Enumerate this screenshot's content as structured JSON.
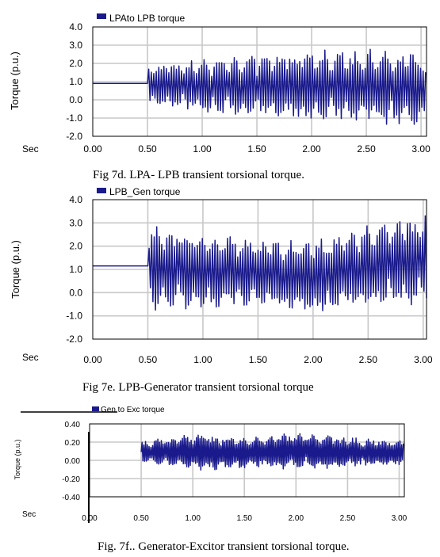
{
  "chart_data": [
    {
      "type": "line",
      "legend": "LPAto LPB torque",
      "ylabel": "Torque (p.u.)",
      "xlabel": "Sec",
      "caption": "Fig  7d.    LPA- LPB transient torsional torque.",
      "xlim": [
        0,
        3.05
      ],
      "ylim": [
        -2.0,
        4.0
      ],
      "x_ticks": [
        "0.00",
        "0.50",
        "1.00",
        "1.50",
        "2.00",
        "2.50",
        "3.00"
      ],
      "y_ticks": [
        "4.0",
        "3.0",
        "2.0",
        "1.0",
        "0.0",
        "-1.0",
        "-2.0"
      ],
      "series": [
        {
          "color": "#1a1a8c",
          "steady_value": 0.9,
          "disturbance_time": 0.5,
          "envelope": {
            "t": [
              0.5,
              1.0,
              1.5,
              2.0,
              2.5,
              3.0
            ],
            "upper": [
              2.0,
              2.2,
              2.4,
              2.7,
              2.8,
              2.4
            ],
            "lower": [
              -0.3,
              -0.7,
              -0.9,
              -1.0,
              -1.3,
              -1.5
            ]
          }
        }
      ]
    },
    {
      "type": "line",
      "legend": "LPB_Gen  torque",
      "ylabel": "Torque (p.u.)",
      "xlabel": "Sec",
      "caption": "Fig  7e.     LPB-Generator transient torsional torque",
      "xlim": [
        0,
        3.03
      ],
      "ylim": [
        -2.0,
        4.0
      ],
      "x_ticks": [
        "0.00",
        "0.50",
        "1.00",
        "1.50",
        "2.00",
        "2.50",
        "3.00"
      ],
      "y_ticks": [
        "4.0",
        "3.0",
        "2.0",
        "1.0",
        "0.0",
        "-1.0",
        "-2.0"
      ],
      "series": [
        {
          "color": "#1a1a8c",
          "steady_value": 1.15,
          "disturbance_time": 0.5,
          "envelope": {
            "t": [
              0.5,
              1.0,
              1.5,
              2.0,
              2.5,
              3.0
            ],
            "upper": [
              2.9,
              2.5,
              2.3,
              2.2,
              2.9,
              3.3
            ],
            "lower": [
              -0.8,
              -0.7,
              -0.6,
              -0.9,
              -0.6,
              -0.5
            ]
          }
        }
      ]
    },
    {
      "type": "line",
      "legend": "Gen to Exc torque",
      "ylabel": "Torque (p.u.)",
      "xlabel": "Sec",
      "caption": "Fig.   7f..  Generator-Excitor transient torsional torque.",
      "xlim": [
        0,
        3.05
      ],
      "ylim": [
        -0.4,
        0.4
      ],
      "x_ticks": [
        "0.00",
        "0.50",
        "1.00",
        "1.50",
        "2.00",
        "2.50",
        "3.00"
      ],
      "y_ticks": [
        "0.40",
        "0.20",
        "0.00",
        "-0.20",
        "-0.40"
      ],
      "series": [
        {
          "color": "#1a1a8c",
          "disturbance_time": 0.5,
          "envelope": {
            "t": [
              0.5,
              1.0,
              1.5,
              2.0,
              2.5,
              3.0
            ],
            "upper": [
              0.2,
              0.3,
              0.25,
              0.3,
              0.25,
              0.22
            ],
            "lower": [
              -0.02,
              -0.12,
              -0.08,
              -0.1,
              -0.08,
              -0.05
            ]
          }
        }
      ]
    }
  ]
}
